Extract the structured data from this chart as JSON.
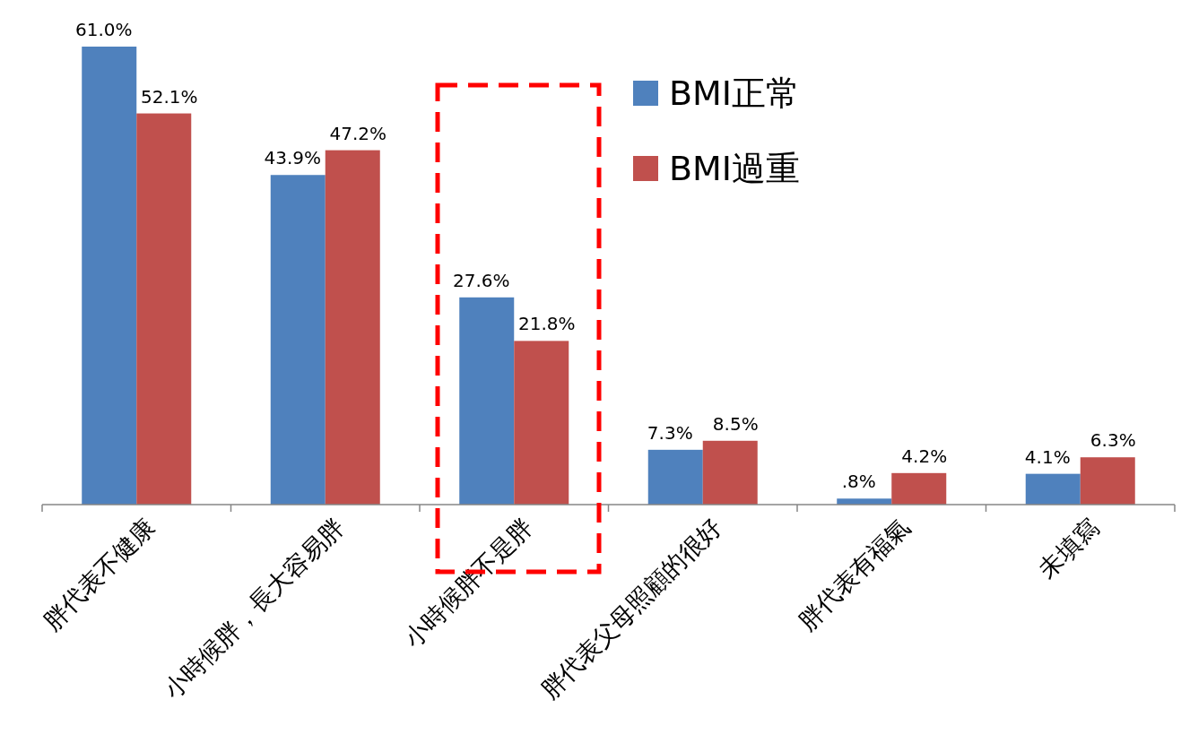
{
  "chart_data": {
    "type": "bar",
    "categories": [
      "胖代表不健康",
      "小時候胖，長大容易胖",
      "小時候胖不是胖",
      "胖代表父母照顧的很好",
      "胖代表有福氣",
      "未填寫"
    ],
    "series": [
      {
        "name": "BMI正常",
        "color": "#4f81bd",
        "values": [
          61.0,
          43.9,
          27.6,
          7.3,
          0.8,
          4.1
        ],
        "value_labels": [
          "61.0%",
          "43.9%",
          "27.6%",
          "7.3%",
          ".8%",
          "4.1%"
        ]
      },
      {
        "name": "BMI過重",
        "color": "#c0504d",
        "values": [
          52.1,
          47.2,
          21.8,
          8.5,
          4.2,
          6.3
        ],
        "value_labels": [
          "52.1%",
          "47.2%",
          "21.8%",
          "8.5%",
          "4.2%",
          "6.3%"
        ]
      }
    ],
    "relative": false,
    "legend": "top right"
  }
}
